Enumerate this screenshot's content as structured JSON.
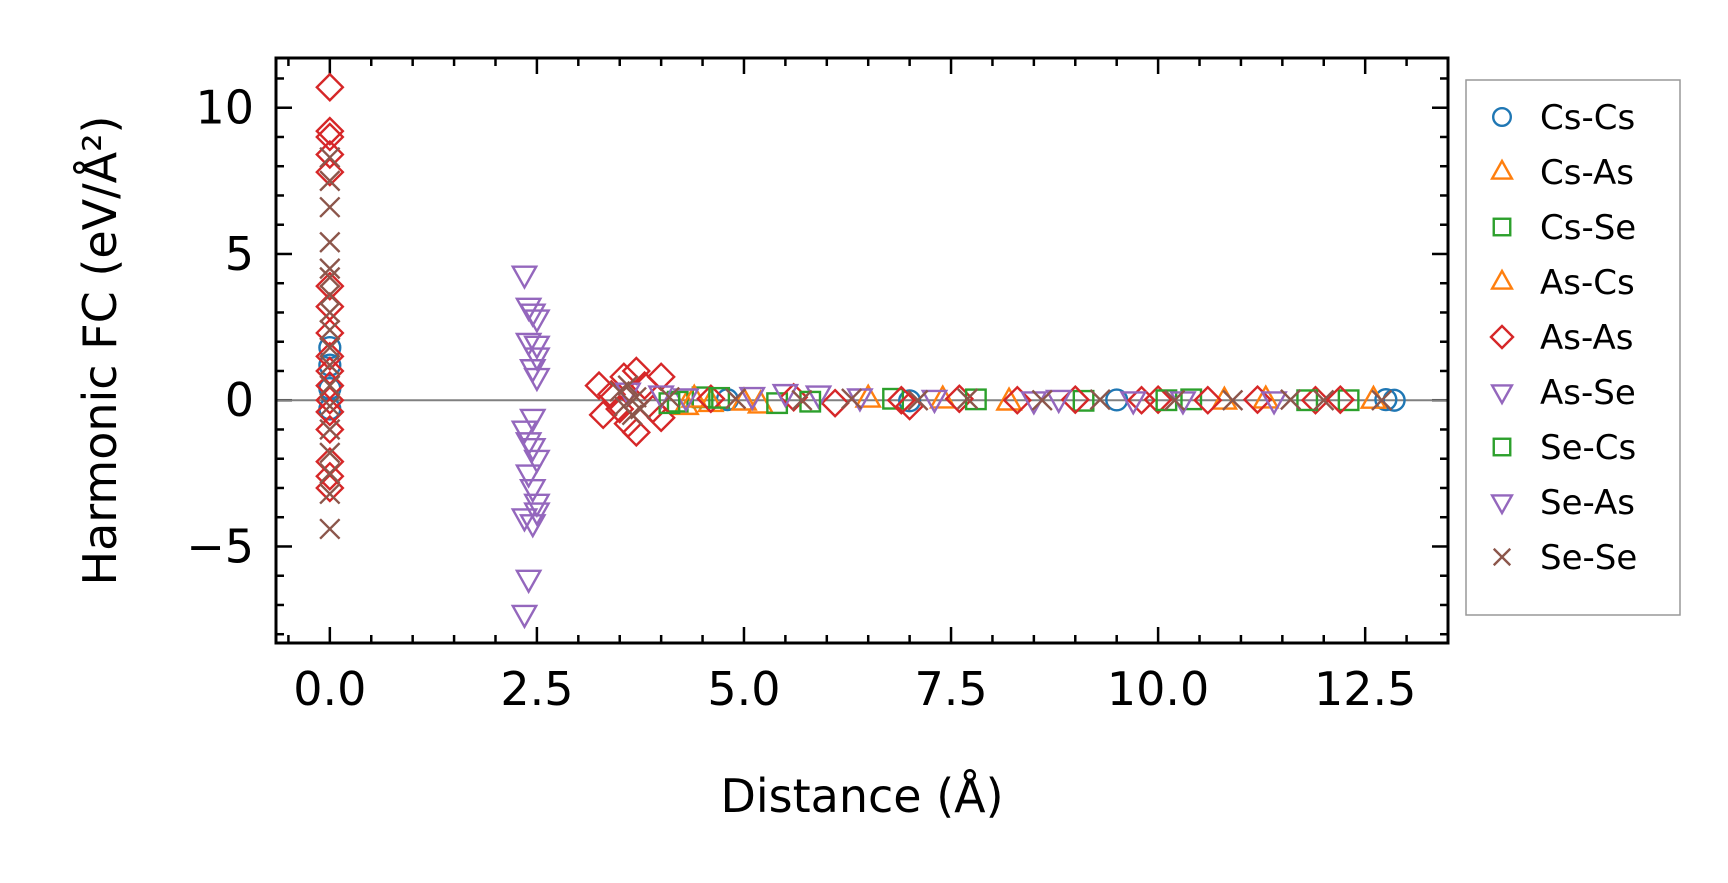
{
  "chart_data": {
    "type": "scatter",
    "xlabel": "Distance (Å)",
    "ylabel": "Harmonic FC (eV/Å²)",
    "xlim": [
      -0.65,
      13.5
    ],
    "ylim": [
      -8.3,
      11.7
    ],
    "xticks": [
      0.0,
      2.5,
      5.0,
      7.5,
      10.0,
      12.5
    ],
    "xtick_labels": [
      "0.0",
      "2.5",
      "5.0",
      "7.5",
      "10.0",
      "12.5"
    ],
    "yticks": [
      -5,
      0,
      5,
      10
    ],
    "ytick_labels": [
      "−5",
      "0",
      "5",
      "10"
    ],
    "grid": false,
    "zero_line": true,
    "legend_position": "outside-right",
    "series": [
      {
        "name": "Cs-Cs",
        "marker": "circle",
        "color": "#1f77b4",
        "points": [
          [
            0,
            1.8
          ],
          [
            0,
            1.2
          ],
          [
            0,
            0.4
          ],
          [
            0,
            -0.3
          ],
          [
            12.85,
            0
          ],
          [
            12.75,
            0.02
          ],
          [
            4.8,
            0.02
          ],
          [
            7.0,
            -0.02
          ],
          [
            9.5,
            0.01
          ]
        ]
      },
      {
        "name": "Cs-As",
        "marker": "triangle-up",
        "color": "#ff7f0e",
        "points": [
          [
            4.3,
            -0.2
          ],
          [
            4.6,
            -0.1
          ],
          [
            5.2,
            -0.15
          ],
          [
            6.5,
            0.05
          ],
          [
            8.2,
            -0.05
          ],
          [
            11.3,
            0.02
          ],
          [
            12.6,
            0.01
          ]
        ]
      },
      {
        "name": "Cs-Se",
        "marker": "square",
        "color": "#2ca02c",
        "points": [
          [
            4.2,
            -0.05
          ],
          [
            4.5,
            0.1
          ],
          [
            5.4,
            -0.1
          ],
          [
            6.8,
            0.05
          ],
          [
            9.1,
            -0.02
          ],
          [
            10.4,
            0.03
          ],
          [
            12.3,
            0.0
          ]
        ]
      },
      {
        "name": "As-Cs",
        "marker": "triangle-up",
        "color": "#ff7f0e",
        "points": [
          [
            4.4,
            0.05
          ],
          [
            5.0,
            -0.05
          ],
          [
            7.4,
            0.02
          ],
          [
            10.8,
            -0.02
          ]
        ]
      },
      {
        "name": "As-As",
        "marker": "diamond",
        "color": "#d62728",
        "points": [
          [
            0,
            10.7
          ],
          [
            0,
            9.2
          ],
          [
            0,
            9.0
          ],
          [
            0,
            8.4
          ],
          [
            0,
            7.8
          ],
          [
            0,
            3.9
          ],
          [
            0,
            3.2
          ],
          [
            0,
            2.3
          ],
          [
            0,
            1.5
          ],
          [
            0,
            1.0
          ],
          [
            0,
            0.5
          ],
          [
            0,
            0.0
          ],
          [
            0,
            -0.4
          ],
          [
            0,
            -1.0
          ],
          [
            0,
            -2.1
          ],
          [
            0,
            -2.6
          ],
          [
            0,
            -3.0
          ],
          [
            3.25,
            0.5
          ],
          [
            3.3,
            -0.5
          ],
          [
            3.4,
            0.2
          ],
          [
            3.5,
            -0.3
          ],
          [
            3.55,
            0.8
          ],
          [
            3.6,
            -0.8
          ],
          [
            3.7,
            1.0
          ],
          [
            3.7,
            -1.1
          ],
          [
            3.8,
            0.5
          ],
          [
            3.9,
            -0.3
          ],
          [
            4.0,
            0.8
          ],
          [
            4.0,
            -0.6
          ],
          [
            4.6,
            0.05
          ],
          [
            5.6,
            0.1
          ],
          [
            6.1,
            -0.1
          ],
          [
            6.9,
            0.0
          ],
          [
            7.0,
            -0.2
          ],
          [
            7.6,
            0.05
          ],
          [
            8.3,
            0.0
          ],
          [
            9.0,
            0.02
          ],
          [
            9.8,
            0.0
          ],
          [
            10.0,
            0.02
          ],
          [
            10.6,
            0.0
          ],
          [
            11.2,
            0.02
          ],
          [
            11.9,
            0.0
          ],
          [
            12.2,
            0.02
          ]
        ]
      },
      {
        "name": "As-Se",
        "marker": "triangle-down",
        "color": "#9467bd",
        "points": [
          [
            2.35,
            4.3
          ],
          [
            2.45,
            3.0
          ],
          [
            2.5,
            2.8
          ],
          [
            2.4,
            2.0
          ],
          [
            2.5,
            1.5
          ],
          [
            2.45,
            1.1
          ],
          [
            2.5,
            0.8
          ],
          [
            2.35,
            -1.0
          ],
          [
            2.45,
            -1.6
          ],
          [
            2.5,
            -2.0
          ],
          [
            2.4,
            -2.5
          ],
          [
            2.45,
            -3.0
          ],
          [
            2.5,
            -3.5
          ],
          [
            2.35,
            -4.0
          ],
          [
            2.45,
            -4.2
          ],
          [
            2.4,
            -6.1
          ],
          [
            2.35,
            -7.3
          ],
          [
            3.6,
            0.3
          ],
          [
            4.3,
            0.1
          ],
          [
            5.1,
            0.15
          ],
          [
            5.9,
            0.2
          ],
          [
            6.4,
            0.1
          ],
          [
            7.3,
            0.05
          ],
          [
            8.5,
            0.0
          ],
          [
            9.7,
            0.0
          ],
          [
            11.4,
            0.0
          ]
        ]
      },
      {
        "name": "Se-Cs",
        "marker": "square",
        "color": "#2ca02c",
        "points": [
          [
            4.1,
            -0.1
          ],
          [
            4.7,
            0.08
          ],
          [
            5.8,
            -0.05
          ],
          [
            7.8,
            0.03
          ],
          [
            10.1,
            0.0
          ],
          [
            11.8,
            0.0
          ]
        ]
      },
      {
        "name": "Se-As",
        "marker": "triangle-down",
        "color": "#9467bd",
        "points": [
          [
            2.4,
            3.2
          ],
          [
            2.5,
            1.9
          ],
          [
            2.45,
            -0.6
          ],
          [
            2.4,
            -1.4
          ],
          [
            2.5,
            -3.8
          ],
          [
            4.0,
            0.2
          ],
          [
            5.5,
            0.25
          ],
          [
            8.8,
            0.05
          ],
          [
            10.3,
            0.0
          ]
        ]
      },
      {
        "name": "Se-Se",
        "marker": "x",
        "color": "#8c564b",
        "points": [
          [
            0,
            8.3
          ],
          [
            0,
            7.5
          ],
          [
            0,
            6.6
          ],
          [
            0,
            5.4
          ],
          [
            0,
            4.5
          ],
          [
            0,
            4.2
          ],
          [
            0,
            3.6
          ],
          [
            0,
            3.0
          ],
          [
            0,
            2.4
          ],
          [
            0,
            1.8
          ],
          [
            0,
            1.2
          ],
          [
            0,
            0.5
          ],
          [
            0,
            -0.2
          ],
          [
            0,
            -1.0
          ],
          [
            0,
            -1.8
          ],
          [
            0,
            -2.5
          ],
          [
            0,
            -3.2
          ],
          [
            0,
            -4.4
          ],
          [
            3.5,
            0.3
          ],
          [
            3.55,
            -0.2
          ],
          [
            3.6,
            0.5
          ],
          [
            3.65,
            -0.5
          ],
          [
            3.7,
            0.1
          ],
          [
            3.75,
            -0.3
          ],
          [
            4.1,
            0.1
          ],
          [
            4.9,
            0.05
          ],
          [
            5.7,
            0.0
          ],
          [
            6.3,
            0.05
          ],
          [
            7.1,
            0.0
          ],
          [
            7.7,
            0.05
          ],
          [
            8.6,
            0.0
          ],
          [
            9.3,
            0.02
          ],
          [
            10.2,
            0.0
          ],
          [
            10.9,
            0.0
          ],
          [
            11.6,
            0.02
          ],
          [
            12.0,
            0.0
          ],
          [
            12.7,
            0.0
          ]
        ]
      }
    ]
  }
}
